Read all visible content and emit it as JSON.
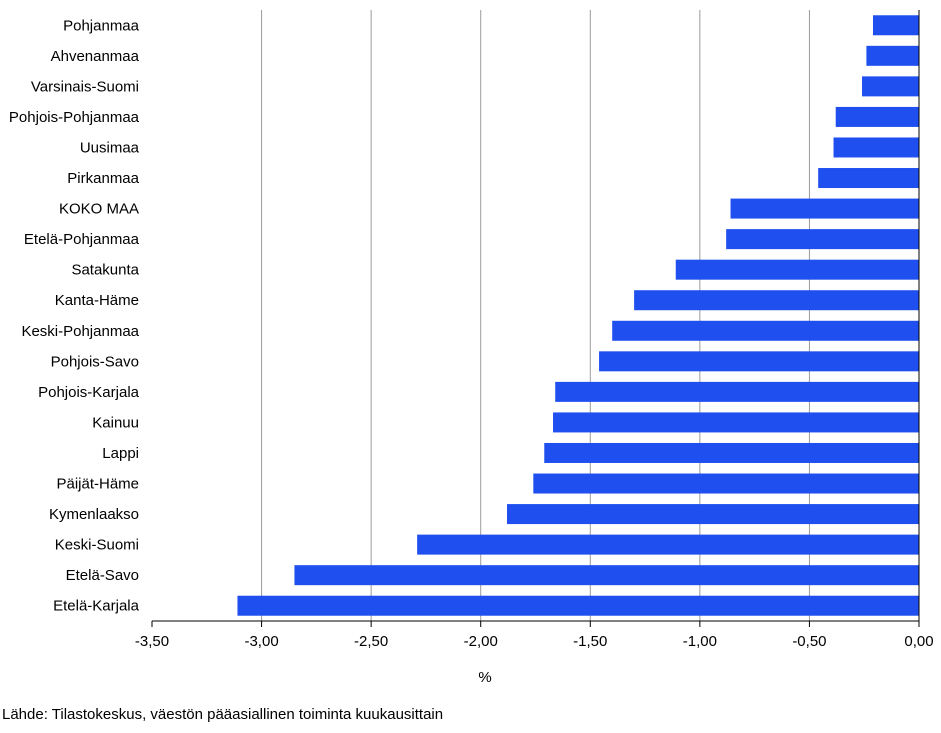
{
  "chart_data": {
    "type": "bar",
    "orientation": "horizontal",
    "categories": [
      "Pohjanmaa",
      "Ahvenanmaa",
      "Varsinais-Suomi",
      "Pohjois-Pohjanmaa",
      "Uusimaa",
      "Pirkanmaa",
      "KOKO MAA",
      "Etelä-Pohjanmaa",
      "Satakunta",
      "Kanta-Häme",
      "Keski-Pohjanmaa",
      "Pohjois-Savo",
      "Pohjois-Karjala",
      "Kainuu",
      "Lappi",
      "Päijät-Häme",
      "Kymenlaakso",
      "Keski-Suomi",
      "Etelä-Savo",
      "Etelä-Karjala"
    ],
    "values": [
      -0.21,
      -0.24,
      -0.26,
      -0.38,
      -0.39,
      -0.46,
      -0.86,
      -0.88,
      -1.11,
      -1.3,
      -1.4,
      -1.46,
      -1.66,
      -1.67,
      -1.71,
      -1.76,
      -1.88,
      -2.29,
      -2.85,
      -3.11
    ],
    "xlabel": "%",
    "ylabel": "",
    "xlim": [
      -3.5,
      0
    ],
    "ticks": [
      -3.5,
      -3.0,
      -2.5,
      -2.0,
      -1.5,
      -1.0,
      -0.5,
      0.0
    ],
    "tick_labels": [
      "-3,50",
      "-3,00",
      "-2,50",
      "-2,00",
      "-1,50",
      "-1,00",
      "-0,50",
      "0,00"
    ],
    "grid": true,
    "bar_color": "#1f4fef"
  },
  "source_text": "Lähde: Tilastokeskus, väestön pääasiallinen toiminta kuukausittain"
}
